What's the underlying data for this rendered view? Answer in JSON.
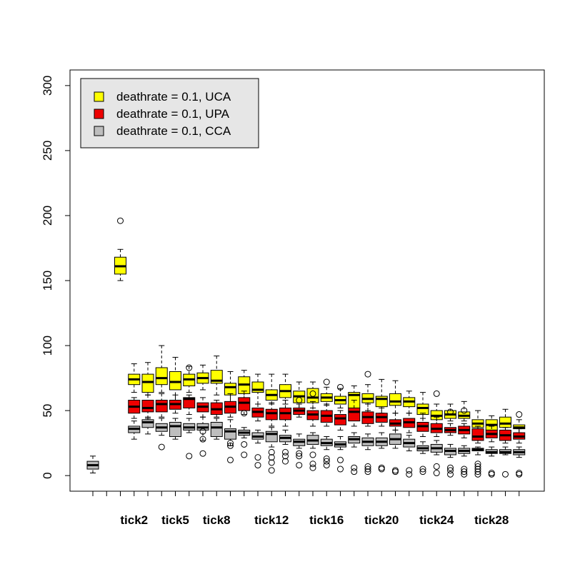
{
  "chart_data": {
    "type": "boxplot",
    "categories": [
      null,
      null,
      null,
      "tick2",
      null,
      null,
      "tick5",
      null,
      null,
      "tick8",
      null,
      null,
      null,
      "tick12",
      null,
      null,
      null,
      "tick16",
      null,
      null,
      null,
      "tick20",
      null,
      null,
      null,
      "tick24",
      null,
      null,
      null,
      "tick28",
      null,
      null
    ],
    "ylim": [
      -12,
      312
    ],
    "yticks": [
      0,
      50,
      100,
      150,
      200,
      250,
      300
    ],
    "legend": "top-left",
    "series": [
      {
        "name": "deathrate = 0.1, UCA",
        "color": "#ffff00",
        "values": [
          null,
          null,
          {
            "min": 150,
            "q1": 155,
            "median": 161,
            "q3": 168,
            "max": 174,
            "outliers": [
              196
            ]
          },
          {
            "min": 64,
            "q1": 70,
            "median": 74,
            "q3": 78,
            "max": 86,
            "outliers": []
          },
          {
            "min": 62,
            "q1": 64,
            "median": 72,
            "q3": 78,
            "max": 87,
            "outliers": []
          },
          {
            "min": 64,
            "q1": 70,
            "median": 75,
            "q3": 83,
            "max": 100,
            "outliers": []
          },
          {
            "min": 58,
            "q1": 66,
            "median": 72,
            "q3": 80,
            "max": 91,
            "outliers": []
          },
          {
            "min": 64,
            "q1": 69,
            "median": 74,
            "q3": 78,
            "max": 84,
            "outliers": [
              83
            ]
          },
          {
            "min": 66,
            "q1": 71,
            "median": 75,
            "q3": 79,
            "max": 85,
            "outliers": []
          },
          {
            "min": 62,
            "q1": 71,
            "median": 73,
            "q3": 81,
            "max": 92,
            "outliers": []
          },
          {
            "min": 55,
            "q1": 62,
            "median": 68,
            "q3": 71,
            "max": 80,
            "outliers": []
          },
          {
            "min": 54,
            "q1": 63,
            "median": 70,
            "q3": 76,
            "max": 81,
            "outliers": []
          },
          {
            "min": 55,
            "q1": 64,
            "median": 66,
            "q3": 72,
            "max": 78,
            "outliers": []
          },
          {
            "min": 55,
            "q1": 58,
            "median": 62,
            "q3": 66,
            "max": 78,
            "outliers": []
          },
          {
            "min": 55,
            "q1": 60,
            "median": 65,
            "q3": 70,
            "max": 78,
            "outliers": []
          },
          {
            "min": 52,
            "q1": 56,
            "median": 61,
            "q3": 65,
            "max": 72,
            "outliers": [
              58
            ]
          },
          {
            "min": 52,
            "q1": 56,
            "median": 60,
            "q3": 67,
            "max": 72,
            "outliers": [
              63
            ]
          },
          {
            "min": 54,
            "q1": 57,
            "median": 60,
            "q3": 63,
            "max": 68,
            "outliers": [
              72
            ]
          },
          {
            "min": 52,
            "q1": 55,
            "median": 58,
            "q3": 61,
            "max": 67,
            "outliers": [
              68
            ]
          },
          {
            "min": 50,
            "q1": 52,
            "median": 62,
            "q3": 64,
            "max": 69,
            "outliers": []
          },
          {
            "min": 50,
            "q1": 56,
            "median": 59,
            "q3": 63,
            "max": 70,
            "outliers": [
              78
            ]
          },
          {
            "min": 48,
            "q1": 53,
            "median": 59,
            "q3": 61,
            "max": 74,
            "outliers": []
          },
          {
            "min": 48,
            "q1": 54,
            "median": 57,
            "q3": 63,
            "max": 73,
            "outliers": []
          },
          {
            "min": 48,
            "q1": 53,
            "median": 57,
            "q3": 60,
            "max": 65,
            "outliers": []
          },
          {
            "min": 44,
            "q1": 47,
            "median": 52,
            "q3": 55,
            "max": 64,
            "outliers": []
          },
          {
            "min": 38,
            "q1": 43,
            "median": 46,
            "q3": 50,
            "max": 55,
            "outliers": [
              63
            ]
          },
          {
            "min": 42,
            "q1": 44,
            "median": 47,
            "q3": 50,
            "max": 55,
            "outliers": [
              49
            ]
          },
          {
            "min": 42,
            "q1": 44,
            "median": 46,
            "q3": 49,
            "max": 57,
            "outliers": [
              50
            ]
          },
          {
            "min": 34,
            "q1": 37,
            "median": 40,
            "q3": 43,
            "max": 50,
            "outliers": []
          },
          {
            "min": 32,
            "q1": 35,
            "median": 39,
            "q3": 43,
            "max": 46,
            "outliers": []
          },
          {
            "min": 35,
            "q1": 37,
            "median": 40,
            "q3": 45,
            "max": 51,
            "outliers": []
          },
          {
            "min": 33,
            "q1": 36,
            "median": 37,
            "q3": 39,
            "max": 43,
            "outliers": [
              47
            ]
          }
        ]
      },
      {
        "name": "deathrate = 0.1, UPA",
        "color": "#ee0000",
        "values": [
          null,
          null,
          null,
          {
            "min": 44,
            "q1": 48,
            "median": 53,
            "q3": 58,
            "max": 60,
            "outliers": []
          },
          {
            "min": 44,
            "q1": 49,
            "median": 52,
            "q3": 58,
            "max": 62,
            "outliers": []
          },
          {
            "min": 45,
            "q1": 49,
            "median": 55,
            "q3": 58,
            "max": 63,
            "outliers": []
          },
          {
            "min": 48,
            "q1": 51,
            "median": 55,
            "q3": 58,
            "max": 62,
            "outliers": []
          },
          {
            "min": 47,
            "q1": 52,
            "median": 59,
            "q3": 60,
            "max": 62,
            "outliers": []
          },
          {
            "min": 45,
            "q1": 49,
            "median": 53,
            "q3": 56,
            "max": 60,
            "outliers": []
          },
          {
            "min": 45,
            "q1": 47,
            "median": 51,
            "q3": 56,
            "max": 58,
            "outliers": []
          },
          {
            "min": 45,
            "q1": 48,
            "median": 53,
            "q3": 57,
            "max": 63,
            "outliers": []
          },
          {
            "min": 47,
            "q1": 50,
            "median": 56,
            "q3": 60,
            "max": 65,
            "outliers": [
              48
            ]
          },
          {
            "min": 42,
            "q1": 45,
            "median": 49,
            "q3": 52,
            "max": 55,
            "outliers": []
          },
          {
            "min": 38,
            "q1": 43,
            "median": 48,
            "q3": 51,
            "max": 56,
            "outliers": []
          },
          {
            "min": 38,
            "q1": 43,
            "median": 48,
            "q3": 52,
            "max": 58,
            "outliers": []
          },
          {
            "min": 45,
            "q1": 47,
            "median": 50,
            "q3": 52,
            "max": 55,
            "outliers": []
          },
          {
            "min": 38,
            "q1": 43,
            "median": 47,
            "q3": 50,
            "max": 57,
            "outliers": []
          },
          {
            "min": 38,
            "q1": 41,
            "median": 46,
            "q3": 50,
            "max": 55,
            "outliers": []
          },
          {
            "min": 35,
            "q1": 39,
            "median": 44,
            "q3": 47,
            "max": 50,
            "outliers": []
          },
          {
            "min": 38,
            "q1": 42,
            "median": 49,
            "q3": 52,
            "max": 58,
            "outliers": []
          },
          {
            "min": 38,
            "q1": 40,
            "median": 45,
            "q3": 49,
            "max": 55,
            "outliers": []
          },
          {
            "min": 38,
            "q1": 41,
            "median": 45,
            "q3": 48,
            "max": 52,
            "outliers": []
          },
          {
            "min": 35,
            "q1": 38,
            "median": 40,
            "q3": 43,
            "max": 48,
            "outliers": []
          },
          {
            "min": 33,
            "q1": 37,
            "median": 41,
            "q3": 44,
            "max": 48,
            "outliers": []
          },
          {
            "min": 30,
            "q1": 34,
            "median": 38,
            "q3": 41,
            "max": 48,
            "outliers": []
          },
          {
            "min": 30,
            "q1": 33,
            "median": 36,
            "q3": 40,
            "max": 45,
            "outliers": []
          },
          {
            "min": 31,
            "q1": 33,
            "median": 35,
            "q3": 37,
            "max": 40,
            "outliers": []
          },
          {
            "min": 29,
            "q1": 32,
            "median": 35,
            "q3": 38,
            "max": 40,
            "outliers": []
          },
          {
            "min": 25,
            "q1": 27,
            "median": 30,
            "q3": 36,
            "max": 38,
            "outliers": []
          },
          {
            "min": 26,
            "q1": 29,
            "median": 32,
            "q3": 35,
            "max": 38,
            "outliers": []
          },
          {
            "min": 25,
            "q1": 27,
            "median": 31,
            "q3": 35,
            "max": 37,
            "outliers": []
          },
          {
            "min": 25,
            "q1": 28,
            "median": 30,
            "q3": 33,
            "max": 36,
            "outliers": []
          }
        ]
      },
      {
        "name": "deathrate = 0.1, CCA",
        "color": "#bebebe",
        "values": [
          {
            "min": 2,
            "q1": 5,
            "median": 8,
            "q3": 11,
            "max": 15,
            "outliers": []
          },
          null,
          null,
          {
            "min": 28,
            "q1": 33,
            "median": 36,
            "q3": 38,
            "max": 42,
            "outliers": []
          },
          {
            "min": 32,
            "q1": 37,
            "median": 41,
            "q3": 43,
            "max": 45,
            "outliers": []
          },
          {
            "min": 31,
            "q1": 34,
            "median": 37,
            "q3": 40,
            "max": 44,
            "outliers": [
              22
            ]
          },
          {
            "min": 28,
            "q1": 30,
            "median": 38,
            "q3": 41,
            "max": 44,
            "outliers": []
          },
          {
            "min": 33,
            "q1": 35,
            "median": 37,
            "q3": 40,
            "max": 44,
            "outliers": [
              15
            ]
          },
          {
            "min": 27,
            "q1": 35,
            "median": 37,
            "q3": 40,
            "max": 45,
            "outliers": [
              17,
              28,
              34
            ]
          },
          {
            "min": 28,
            "q1": 30,
            "median": 37,
            "q3": 41,
            "max": 44,
            "outliers": []
          },
          {
            "min": 23,
            "q1": 28,
            "median": 34,
            "q3": 36,
            "max": 43,
            "outliers": [
              12,
              23,
              25
            ]
          },
          {
            "min": 29,
            "q1": 31,
            "median": 33,
            "q3": 35,
            "max": 37,
            "outliers": [
              16,
              24
            ]
          },
          {
            "min": 25,
            "q1": 28,
            "median": 30,
            "q3": 33,
            "max": 35,
            "outliers": [
              8,
              14
            ]
          },
          {
            "min": 22,
            "q1": 26,
            "median": 32,
            "q3": 34,
            "max": 37,
            "outliers": [
              4,
              10,
              14,
              18
            ]
          },
          {
            "min": 24,
            "q1": 26,
            "median": 29,
            "q3": 31,
            "max": 35,
            "outliers": [
              11,
              15,
              18
            ]
          },
          {
            "min": 21,
            "q1": 23,
            "median": 26,
            "q3": 28,
            "max": 32,
            "outliers": [
              8,
              15,
              17
            ]
          },
          {
            "min": 21,
            "q1": 24,
            "median": 27,
            "q3": 31,
            "max": 33,
            "outliers": [
              6,
              9,
              16
            ]
          },
          {
            "min": 20,
            "q1": 23,
            "median": 25,
            "q3": 28,
            "max": 30,
            "outliers": [
              8,
              11,
              13
            ]
          },
          {
            "min": 20,
            "q1": 22,
            "median": 24,
            "q3": 26,
            "max": 30,
            "outliers": [
              5,
              12
            ]
          },
          {
            "min": 22,
            "q1": 25,
            "median": 28,
            "q3": 30,
            "max": 33,
            "outliers": [
              3,
              6
            ]
          },
          {
            "min": 20,
            "q1": 23,
            "median": 26,
            "q3": 29,
            "max": 32,
            "outliers": [
              3,
              5,
              7
            ]
          },
          {
            "min": 21,
            "q1": 23,
            "median": 26,
            "q3": 29,
            "max": 33,
            "outliers": [
              5,
              6
            ]
          },
          {
            "min": 21,
            "q1": 24,
            "median": 28,
            "q3": 32,
            "max": 35,
            "outliers": [
              3,
              4
            ]
          },
          {
            "min": 19,
            "q1": 22,
            "median": 25,
            "q3": 28,
            "max": 31,
            "outliers": [
              1,
              4
            ]
          },
          {
            "min": 17,
            "q1": 19,
            "median": 21,
            "q3": 23,
            "max": 26,
            "outliers": [
              3,
              5
            ]
          },
          {
            "min": 16,
            "q1": 18,
            "median": 21,
            "q3": 24,
            "max": 27,
            "outliers": [
              2,
              7
            ]
          },
          {
            "min": 14,
            "q1": 16,
            "median": 19,
            "q3": 21,
            "max": 24,
            "outliers": [
              1,
              4,
              6
            ]
          },
          {
            "min": 15,
            "q1": 17,
            "median": 19,
            "q3": 21,
            "max": 23,
            "outliers": [
              1,
              3,
              5
            ]
          },
          {
            "min": 16,
            "q1": 19,
            "median": 20,
            "q3": 21,
            "max": 22,
            "outliers": [
              1,
              3,
              5,
              7,
              9
            ]
          },
          {
            "min": 15,
            "q1": 17,
            "median": 18,
            "q3": 20,
            "max": 22,
            "outliers": [
              1,
              2
            ]
          },
          {
            "min": 16,
            "q1": 17,
            "median": 18,
            "q3": 20,
            "max": 22,
            "outliers": [
              1
            ]
          },
          {
            "min": 14,
            "q1": 16,
            "median": 18,
            "q3": 20,
            "max": 22,
            "outliers": [
              1,
              2
            ]
          }
        ]
      }
    ]
  }
}
